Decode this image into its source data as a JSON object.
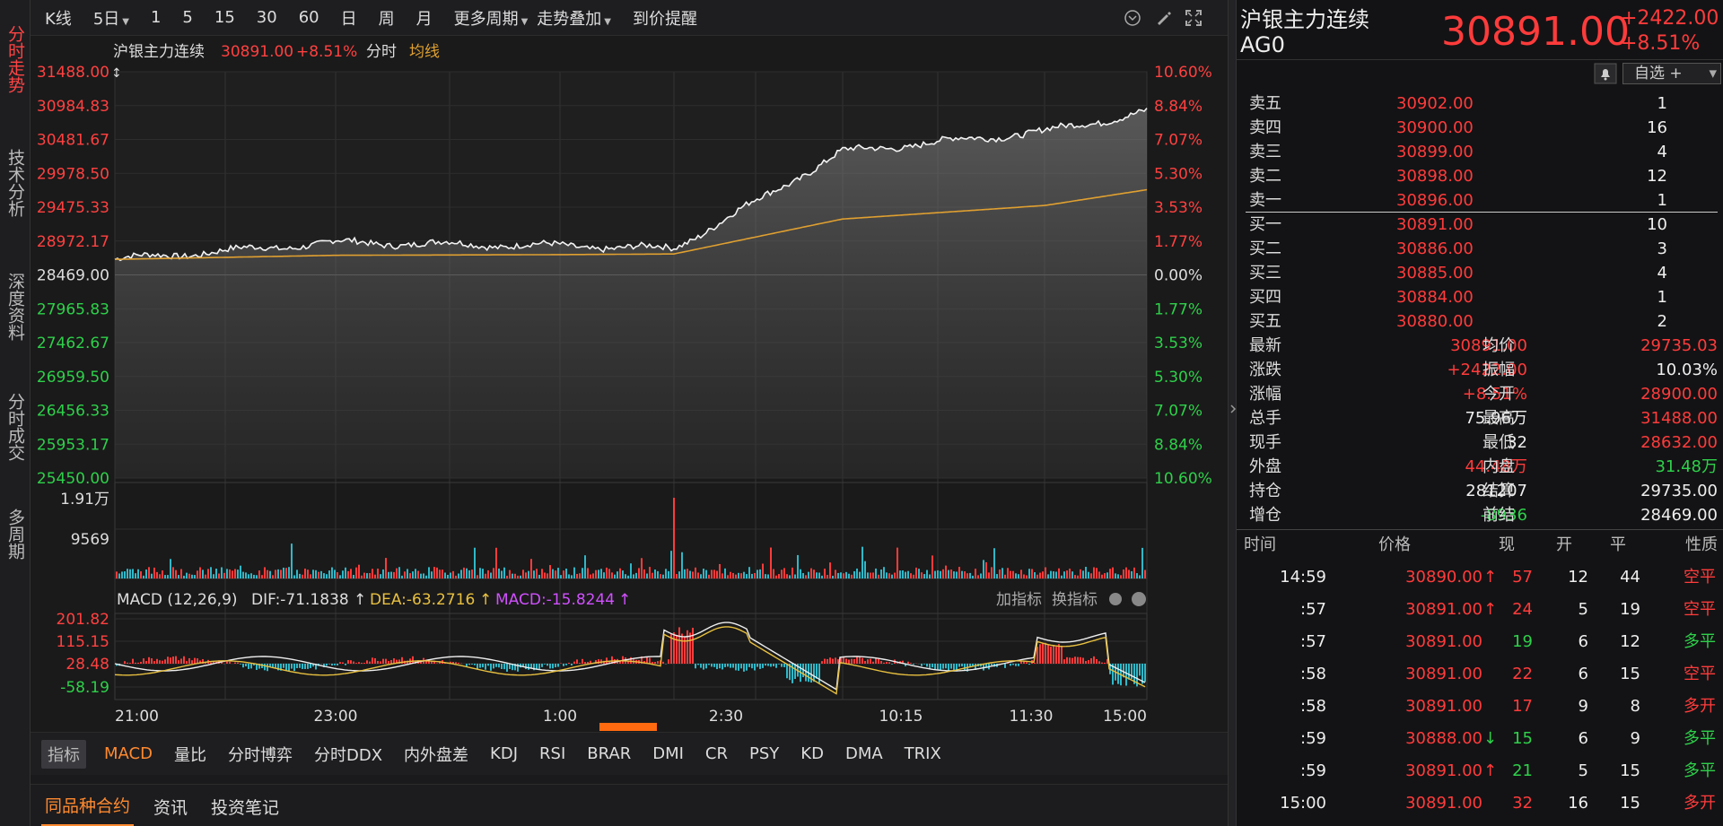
{
  "leftnav": [
    {
      "label": "分时走势",
      "active": true
    },
    {
      "label": "技术分析",
      "active": false
    },
    {
      "label": "深度资料",
      "active": false
    },
    {
      "label": "分时成交",
      "active": false
    },
    {
      "label": "多周期",
      "active": false
    }
  ],
  "topbar": {
    "kline": "K线",
    "period5": "5日",
    "p1": "1",
    "p5": "5",
    "p15": "15",
    "p30": "30",
    "p60": "60",
    "day": "日",
    "week": "周",
    "month": "月",
    "more": "更多周期",
    "overlay": "走势叠加",
    "alert": "到价提醒"
  },
  "chart": {
    "header": {
      "name": "沪银主力连续",
      "price": "30891.00",
      "pct": "+8.51%",
      "mode": "分时",
      "avg": "均线"
    },
    "price_ticks": [
      "31488.00",
      "30984.83",
      "30481.67",
      "29978.50",
      "29475.33",
      "28972.17",
      "28469.00",
      "27965.83",
      "27462.67",
      "26959.50",
      "26456.33",
      "25953.17",
      "25450.00"
    ],
    "pct_ticks": [
      "10.60%",
      "8.84%",
      "7.07%",
      "5.30%",
      "3.53%",
      "1.77%",
      "0.00%",
      "1.77%",
      "3.53%",
      "5.30%",
      "7.07%",
      "8.84%",
      "10.60%"
    ],
    "vol_ticks": [
      "1.91万",
      "9569"
    ],
    "macd_header": {
      "title": "MACD (12,26,9)",
      "dif": "DIF:-71.1838",
      "dea": "DEA:-63.2716",
      "macd": "MACD:-15.8244",
      "add": "加指标",
      "swap": "换指标"
    },
    "macd_ticks": [
      "201.82",
      "115.15",
      "28.48",
      "-58.19"
    ],
    "time_ticks": [
      "21:00",
      "23:00",
      "1:00",
      "2:30",
      "10:15",
      "11:30",
      "15:00"
    ]
  },
  "chart_data": {
    "type": "line",
    "title": "沪银主力连续",
    "x": [
      "21:00",
      "23:00",
      "1:00",
      "2:30",
      "10:15",
      "11:30",
      "15:00"
    ],
    "series": [
      {
        "name": "价格",
        "values": [
          28700,
          28950,
          28900,
          28860,
          30300,
          30600,
          30891
        ]
      },
      {
        "name": "均价",
        "values": [
          28700,
          28760,
          28770,
          28780,
          29300,
          29500,
          29735
        ]
      }
    ],
    "ylim": [
      25450,
      31488
    ],
    "grid": true
  },
  "indbar": {
    "label": "指标",
    "items": [
      "MACD",
      "量比",
      "分时博弈",
      "分时DDX",
      "内外盘差",
      "KDJ",
      "RSI",
      "BRAR",
      "DMI",
      "CR",
      "PSY",
      "KD",
      "DMA",
      "TRIX"
    ]
  },
  "bottomtabs": [
    "同品种合约",
    "资讯",
    "投资笔记"
  ],
  "quote": {
    "name": "沪银主力连续",
    "code": "AG0",
    "price": "30891.00",
    "change": "+2422.00",
    "pct": "+8.51%",
    "watch": "自选 +",
    "asks": [
      {
        "label": "卖五",
        "price": "30902.00",
        "vol": "1"
      },
      {
        "label": "卖四",
        "price": "30900.00",
        "vol": "16"
      },
      {
        "label": "卖三",
        "price": "30899.00",
        "vol": "4"
      },
      {
        "label": "卖二",
        "price": "30898.00",
        "vol": "12"
      },
      {
        "label": "卖一",
        "price": "30896.00",
        "vol": "1"
      }
    ],
    "bids": [
      {
        "label": "买一",
        "price": "30891.00",
        "vol": "10"
      },
      {
        "label": "买二",
        "price": "30886.00",
        "vol": "3"
      },
      {
        "label": "买三",
        "price": "30885.00",
        "vol": "4"
      },
      {
        "label": "买四",
        "price": "30884.00",
        "vol": "1"
      },
      {
        "label": "买五",
        "price": "30880.00",
        "vol": "2"
      }
    ],
    "stats": [
      {
        "l1": "最新",
        "v1": "30891.00",
        "c1": "red",
        "l2": "均价",
        "v2": "29735.03",
        "c2": "red"
      },
      {
        "l1": "涨跌",
        "v1": "+2422.00",
        "c1": "red",
        "l2": "振幅",
        "v2": "10.03%",
        "c2": "white"
      },
      {
        "l1": "涨幅",
        "v1": "+8.51%",
        "c1": "red",
        "l2": "今开",
        "v2": "28900.00",
        "c2": "red"
      },
      {
        "l1": "总手",
        "v1": "75.96万",
        "c1": "white",
        "l2": "最高",
        "v2": "31488.00",
        "c2": "red"
      },
      {
        "l1": "现手",
        "v1": "32",
        "c1": "white",
        "l2": "最低",
        "v2": "28632.00",
        "c2": "red"
      },
      {
        "l1": "外盘",
        "v1": "44.48万",
        "c1": "red",
        "l2": "内盘",
        "v2": "31.48万",
        "c2": "green"
      },
      {
        "l1": "持仓",
        "v1": "281207",
        "c1": "white",
        "l2": "结算",
        "v2": "29735.00",
        "c2": "white"
      },
      {
        "l1": "增仓",
        "v1": "-8936",
        "c1": "green",
        "l2": "前结",
        "v2": "28469.00",
        "c2": "white"
      }
    ],
    "ticks_header": {
      "time": "时间",
      "price": "价格",
      "now": "现",
      "open": "开",
      "close": "平",
      "nature": "性质"
    },
    "ticks": [
      {
        "time": "14:59",
        "price": "30890.00",
        "dir": "up",
        "now": "57",
        "nowc": "red",
        "open": "12",
        "close": "44",
        "nature": "空平",
        "natc": "red"
      },
      {
        "time": ":57",
        "price": "30891.00",
        "dir": "up",
        "now": "24",
        "nowc": "red",
        "open": "5",
        "close": "19",
        "nature": "空平",
        "natc": "red"
      },
      {
        "time": ":57",
        "price": "30891.00",
        "dir": "",
        "now": "19",
        "nowc": "green",
        "open": "6",
        "close": "12",
        "nature": "多平",
        "natc": "green"
      },
      {
        "time": ":58",
        "price": "30891.00",
        "dir": "",
        "now": "22",
        "nowc": "red",
        "open": "6",
        "close": "15",
        "nature": "空平",
        "natc": "red"
      },
      {
        "time": ":58",
        "price": "30891.00",
        "dir": "",
        "now": "17",
        "nowc": "red",
        "open": "9",
        "close": "8",
        "nature": "多开",
        "natc": "red"
      },
      {
        "time": ":59",
        "price": "30888.00",
        "dir": "down",
        "now": "15",
        "nowc": "green",
        "open": "6",
        "close": "9",
        "nature": "多平",
        "natc": "green"
      },
      {
        "time": ":59",
        "price": "30891.00",
        "dir": "up",
        "now": "21",
        "nowc": "green",
        "open": "5",
        "close": "15",
        "nature": "多平",
        "natc": "green"
      },
      {
        "time": "15:00",
        "price": "30891.00",
        "dir": "",
        "now": "32",
        "nowc": "red",
        "open": "16",
        "close": "15",
        "nature": "多开",
        "natc": "red"
      }
    ]
  }
}
